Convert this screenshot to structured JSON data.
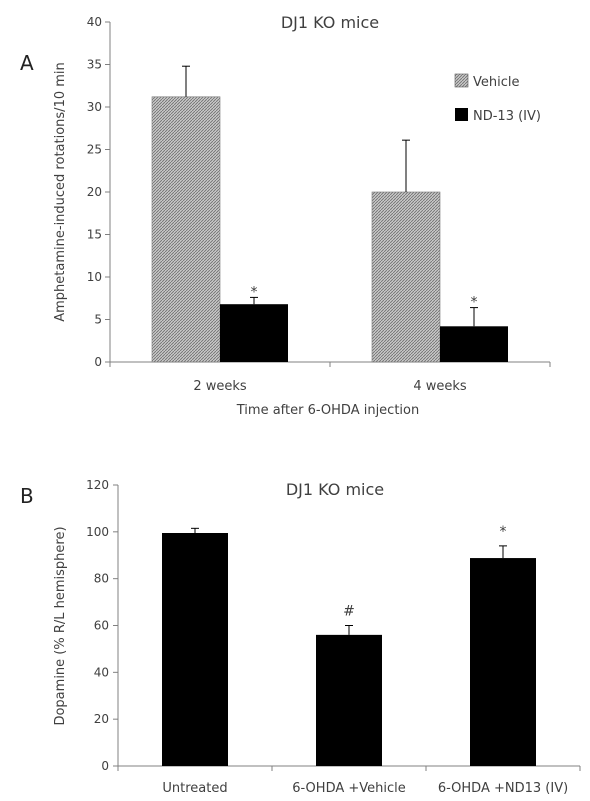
{
  "chart_data": [
    {
      "type": "bar",
      "panel_label": "A",
      "title": "DJ1 KO mice",
      "xlabel": "Time after 6-OHDA injection",
      "ylabel": "Amphetamine-induced rotations/10 min",
      "ylim": [
        0,
        40
      ],
      "yticks": [
        "0",
        "5",
        "10",
        "15",
        "20",
        "25",
        "30",
        "35",
        "40"
      ],
      "grid": false,
      "legend_position": "top-right",
      "categories": [
        "2 weeks",
        "4 weeks"
      ],
      "series": [
        {
          "name": "Vehicle",
          "values": [
            31.2,
            20.0
          ],
          "errors": [
            3.6,
            6.1
          ],
          "color": "#b4b4b4",
          "pattern": "hatched"
        },
        {
          "name": "ND-13 (IV)",
          "values": [
            6.8,
            4.2
          ],
          "errors": [
            0.8,
            2.2
          ],
          "color": "#000000",
          "pattern": "solid"
        }
      ],
      "annotations": [
        {
          "series": 1,
          "category": 0,
          "text": "*"
        },
        {
          "series": 1,
          "category": 1,
          "text": "*"
        }
      ]
    },
    {
      "type": "bar",
      "panel_label": "B",
      "title": "DJ1 KO mice",
      "xlabel": "",
      "ylabel": "Dopamine (% R/L hemisphere)",
      "ylim": [
        0,
        120
      ],
      "yticks": [
        "0",
        "20",
        "40",
        "60",
        "80",
        "100",
        "120"
      ],
      "grid": false,
      "categories": [
        "Untreated",
        "6-OHDA +Vehicle",
        "6-OHDA +ND13 (IV)"
      ],
      "series": [
        {
          "values": [
            99.5,
            56.0,
            88.8
          ],
          "errors": [
            2.0,
            4.0,
            5.2
          ],
          "color": "#000000"
        }
      ],
      "annotations": [
        {
          "series": 0,
          "category": 1,
          "text": "#"
        },
        {
          "series": 0,
          "category": 2,
          "text": "*"
        }
      ]
    }
  ]
}
